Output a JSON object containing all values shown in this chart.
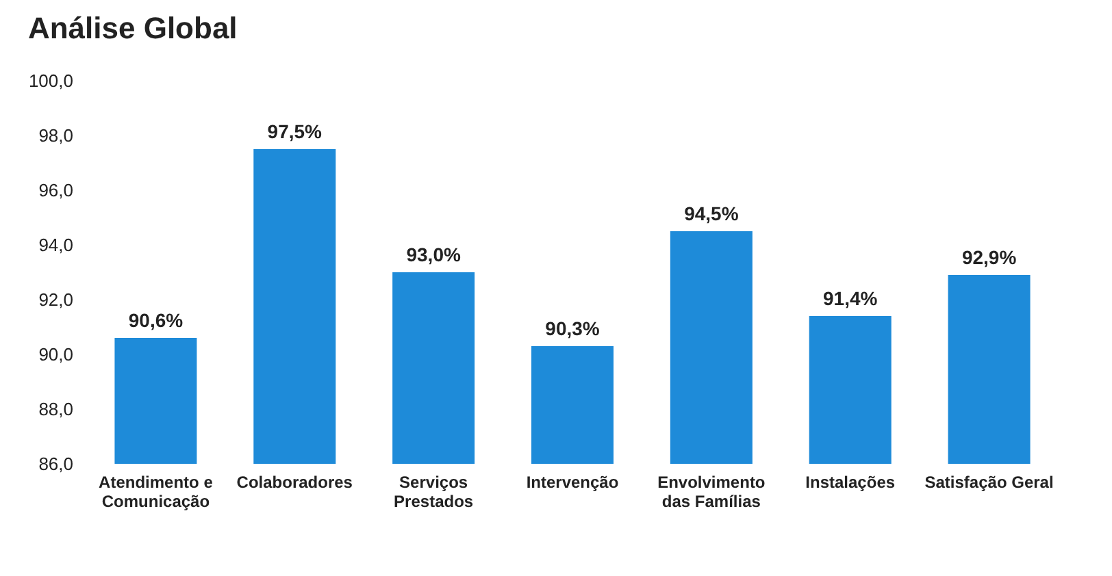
{
  "chart_data": {
    "type": "bar",
    "title": "Análise Global",
    "categories": [
      "Atendimento e\nComunicação",
      "Colaboradores",
      "Serviços\nPrestados",
      "Intervenção",
      "Envolvimento\ndas Famílias",
      "Instalações",
      "Satisfação Geral"
    ],
    "values": [
      90.6,
      97.5,
      93.0,
      90.3,
      94.5,
      91.4,
      92.9
    ],
    "value_labels": [
      "90,6%",
      "97,5%",
      "93,0%",
      "90,3%",
      "94,5%",
      "91,4%",
      "92,9%"
    ],
    "color": "#1e8bd9",
    "ylim": [
      86,
      100
    ],
    "yticks": [
      {
        "value": 86,
        "label": "86,0"
      },
      {
        "value": 88,
        "label": "88,0"
      },
      {
        "value": 90,
        "label": "90,0"
      },
      {
        "value": 92,
        "label": "92,0"
      },
      {
        "value": 94,
        "label": "94,0"
      },
      {
        "value": 96,
        "label": "96,0"
      },
      {
        "value": 98,
        "label": "98,0"
      },
      {
        "value": 100,
        "label": "100,0"
      }
    ],
    "grid": false
  }
}
